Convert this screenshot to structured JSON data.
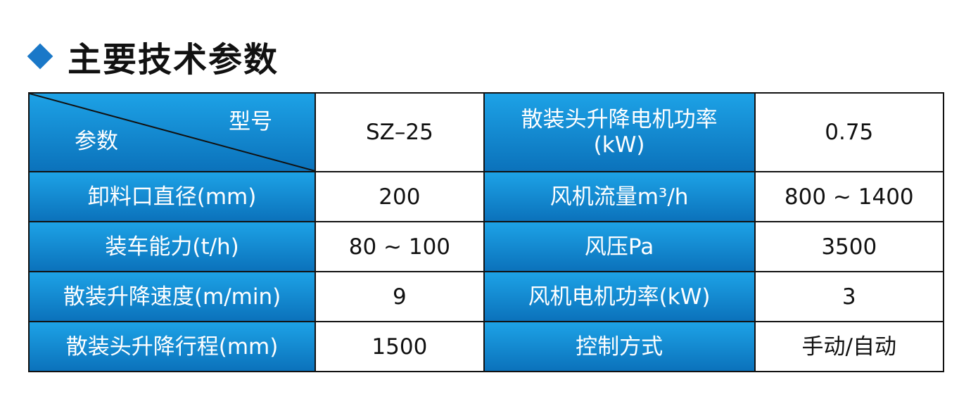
{
  "title": "主要技术参数",
  "table": {
    "corner": {
      "top": "型号",
      "bottom": "参数"
    },
    "model": "SZ–25",
    "rows": [
      {
        "p1": "卸料口直径(mm)",
        "v1": "200",
        "p2": "风机流量m³/h",
        "v2": "800 ~ 1400"
      },
      {
        "p1": "装车能力(t/h)",
        "v1": "80 ~ 100",
        "p2": "风压Pa",
        "v2": "3500"
      },
      {
        "p1": "散装升降速度(m/min)",
        "v1": "9",
        "p2": "风机电机功率(kW)",
        "v2": "3"
      },
      {
        "p1": "散装头升降行程(mm)",
        "v1": "1500",
        "p2": "控制方式",
        "v2": "手动/自动"
      }
    ],
    "first_row_p2": "散装头升降电机功率 (kW)",
    "first_row_v2": "0.75"
  },
  "colors": {
    "header_top": "#1da2e6",
    "header_bottom": "#0b72bb",
    "accent": "#1a78c8"
  }
}
